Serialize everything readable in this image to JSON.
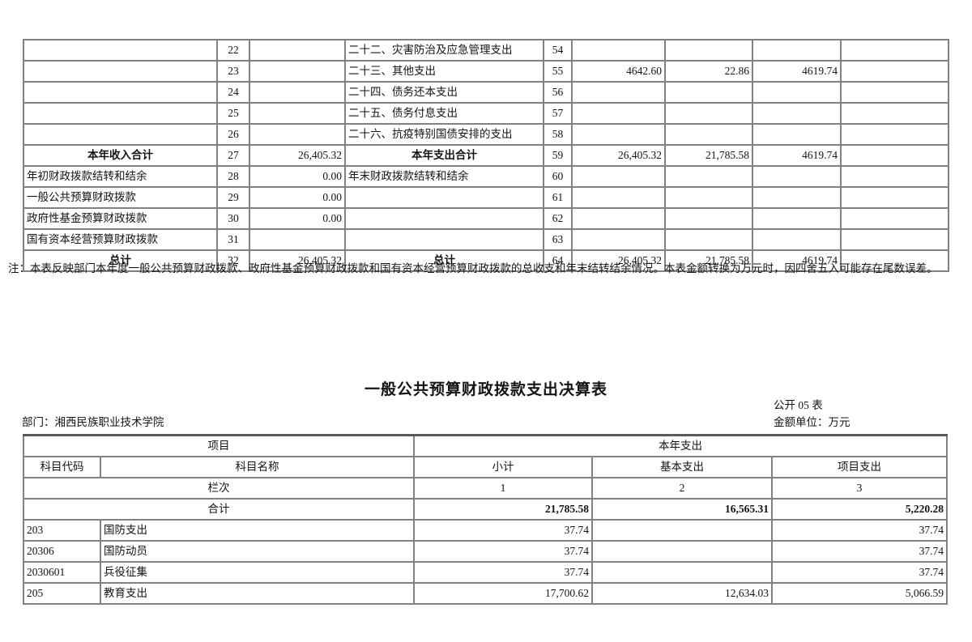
{
  "top_table": {
    "rows": [
      {
        "l": "",
        "ln": "22",
        "lv": "",
        "r": "二十二、灾害防治及应急管理支出",
        "rn": "54",
        "v1": "",
        "v2": "",
        "v3": "",
        "v4": ""
      },
      {
        "l": "",
        "ln": "23",
        "lv": "",
        "r": "二十三、其他支出",
        "rn": "55",
        "v1": "4642.60",
        "v2": "22.86",
        "v3": "4619.74",
        "v4": ""
      },
      {
        "l": "",
        "ln": "24",
        "lv": "",
        "r": "二十四、债务还本支出",
        "rn": "56",
        "v1": "",
        "v2": "",
        "v3": "",
        "v4": ""
      },
      {
        "l": "",
        "ln": "25",
        "lv": "",
        "r": "二十五、债务付息支出",
        "rn": "57",
        "v1": "",
        "v2": "",
        "v3": "",
        "v4": ""
      },
      {
        "l": "",
        "ln": "26",
        "lv": "",
        "r": "二十六、抗疫特别国债安排的支出",
        "rn": "58",
        "v1": "",
        "v2": "",
        "v3": "",
        "v4": ""
      },
      {
        "l": "本年收入合计",
        "ln": "27",
        "lv": "26,405.32",
        "r": "本年支出合计",
        "rn": "59",
        "v1": "26,405.32",
        "v2": "21,785.58",
        "v3": "4619.74",
        "v4": ""
      },
      {
        "l": "年初财政拨款结转和结余",
        "ln": "28",
        "lv": "0.00",
        "r": "年末财政拨款结转和结余",
        "rn": "60",
        "v1": "",
        "v2": "",
        "v3": "",
        "v4": ""
      },
      {
        "l": "一般公共预算财政拨款",
        "ln": "29",
        "lv": "0.00",
        "r": "",
        "rn": "61",
        "v1": "",
        "v2": "",
        "v3": "",
        "v4": ""
      },
      {
        "l": "政府性基金预算财政拨款",
        "ln": "30",
        "lv": "0.00",
        "r": "",
        "rn": "62",
        "v1": "",
        "v2": "",
        "v3": "",
        "v4": ""
      },
      {
        "l": "国有资本经营预算财政拨款",
        "ln": "31",
        "lv": "",
        "r": "",
        "rn": "63",
        "v1": "",
        "v2": "",
        "v3": "",
        "v4": ""
      },
      {
        "l": "总计",
        "ln": "32",
        "lv": "26,405.32",
        "r": "总计",
        "rn": "64",
        "v1": "26,405.32",
        "v2": "21,785.58",
        "v3": "4619.74",
        "v4": ""
      }
    ]
  },
  "note": "注：本表反映部门本年度一般公共预算财政拨款、政府性基金预算财政拨款和国有资本经营预算财政拨款的总收支和年末结转结余情况。本表金额转换为万元时，因四舍五入可能存在尾数误差。",
  "section2": {
    "title": "一般公共预算财政拨款支出决算表",
    "table_code": "公开 05 表",
    "department": "部门：湘西民族职业技术学院",
    "unit": "金额单位：万元",
    "header": {
      "project": "项目",
      "year_expense": "本年支出",
      "code": "科目代码",
      "name": "科目名称",
      "subtotal": "小计",
      "basic": "基本支出",
      "project_exp": "项目支出",
      "lanci": "栏次",
      "col1": "1",
      "col2": "2",
      "col3": "3",
      "total_label": "合计"
    },
    "total": {
      "subtotal": "21,785.58",
      "basic": "16,565.31",
      "project": "5,220.28"
    },
    "rows": [
      {
        "code": "203",
        "name": "国防支出",
        "subtotal": "37.74",
        "basic": "",
        "project": "37.74"
      },
      {
        "code": "20306",
        "name": "国防动员",
        "subtotal": "37.74",
        "basic": "",
        "project": "37.74"
      },
      {
        "code": "2030601",
        "name": "兵役征集",
        "subtotal": "37.74",
        "basic": "",
        "project": "37.74"
      },
      {
        "code": "205",
        "name": "教育支出",
        "subtotal": "17,700.62",
        "basic": "12,634.03",
        "project": "5,066.59"
      }
    ]
  }
}
